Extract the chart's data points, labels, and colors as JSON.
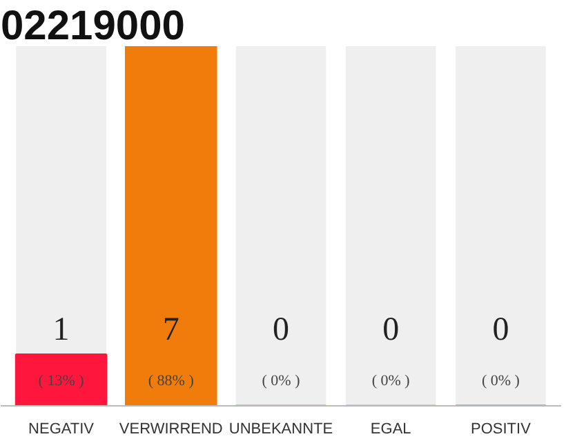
{
  "chart_data": {
    "type": "bar",
    "title": "02219000",
    "categories": [
      "NEGATIV",
      "VERWIRREND",
      "UNBEKANNTE",
      "EGAL",
      "POSITIV"
    ],
    "values": [
      1,
      7,
      0,
      0,
      0
    ],
    "colors": [
      "#ff163c",
      "#f07c0c",
      "#6f9be0",
      "#7ec85e",
      "#21a643"
    ],
    "ylim": [
      0,
      7
    ],
    "data_labels": true,
    "tick_labels": "x",
    "grid": false,
    "annotations": [
      "( 13% )",
      "( 88% )",
      "( 0% )",
      "( 0% )",
      "( 0% )"
    ]
  }
}
